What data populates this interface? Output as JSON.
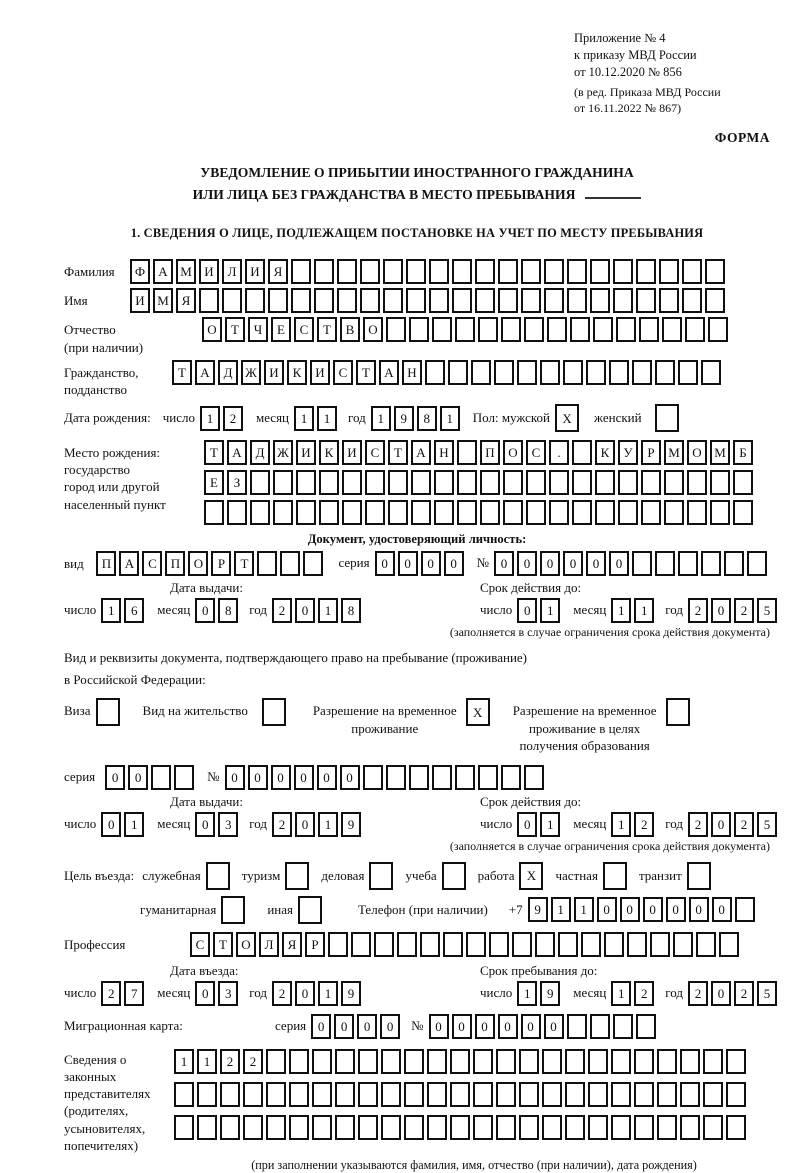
{
  "header": {
    "appendix_line1": "Приложение № 4",
    "appendix_line2": "к приказу МВД России",
    "appendix_line3": "от 10.12.2020 № 856",
    "amendment_line1": "(в ред. Приказа МВД России",
    "amendment_line2": "от 16.11.2022 № 867)",
    "forma": "ФОРМА"
  },
  "title": {
    "line1": "УВЕДОМЛЕНИЕ О ПРИБЫТИИ ИНОСТРАННОГО ГРАЖДАНИНА",
    "line2": "ИЛИ ЛИЦА БЕЗ ГРАЖДАНСТВА В МЕСТО ПРЕБЫВАНИЯ"
  },
  "section1": {
    "heading": "1. СВЕДЕНИЯ О ЛИЦЕ, ПОДЛЕЖАЩЕМ ПОСТАНОВКЕ НА УЧЕТ ПО МЕСТУ ПРЕБЫВАНИЯ"
  },
  "labels": {
    "day": "число",
    "month": "месяц",
    "year": "год",
    "series": "серия",
    "number": "№",
    "issue_date": "Дата выдачи:",
    "valid_until": "Срок действия до:",
    "entry_date": "Дата въезда:",
    "stay_until": "Срок пребывания до:",
    "restriction_note": "(заполняется в случае ограничения срока действия документа)"
  },
  "person": {
    "surname": {
      "label": "Фамилия",
      "value": "ФАМИЛИЯ"
    },
    "given_name": {
      "label": "Имя",
      "value": "ИМЯ"
    },
    "patronymic": {
      "label_line1": "Отчество",
      "label_line2": "(при наличии)",
      "value": "ОТЧЕСТВО"
    },
    "citizenship": {
      "label_line1": "Гражданство,",
      "label_line2": "подданство",
      "value": "ТАДЖИКИСТАН"
    },
    "birth_date": {
      "label": "Дата рождения:",
      "day": "12",
      "month": "11",
      "year": "1981"
    },
    "sex": {
      "label": "Пол: мужской",
      "male_mark": "X",
      "female_label": "женский",
      "female_mark": ""
    },
    "birth_place": {
      "label_line1": "Место рождения:",
      "label_line2": "государство",
      "label_line3": "город или другой",
      "label_line4": "населенный пункт",
      "row1": "ТАДЖИКИСТАН ПОС. КУРМОМБ",
      "row2": "ЕЗ",
      "row3": ""
    }
  },
  "identity_doc": {
    "heading": "Документ, удостоверяющий личность:",
    "kind_label": "вид",
    "kind": "ПАСПОРТ",
    "series": "0000",
    "number": "000000",
    "issue": {
      "day": "16",
      "month": "08",
      "year": "2018"
    },
    "valid": {
      "day": "01",
      "month": "11",
      "year": "2025"
    }
  },
  "residence_doc": {
    "intro_line1": "Вид и реквизиты документа, подтверждающего право на пребывание (проживание)",
    "intro_line2": "в Российской Федерации:",
    "options": [
      {
        "line1": "Виза",
        "mark": ""
      },
      {
        "line1": "Вид на жительство",
        "mark": ""
      },
      {
        "line1": "Разрешение на временное",
        "line2": "проживание",
        "mark": "X"
      },
      {
        "line1": "Разрешение на временное",
        "line2": "проживание в целях",
        "line3": "получения образования",
        "mark": ""
      }
    ],
    "series": "00",
    "number": "000000",
    "issue": {
      "day": "01",
      "month": "03",
      "year": "2019"
    },
    "valid": {
      "day": "01",
      "month": "12",
      "year": "2025"
    }
  },
  "visit": {
    "purpose_label": "Цель въезда:",
    "purposes": [
      {
        "label": "служебная",
        "mark": ""
      },
      {
        "label": "туризм",
        "mark": ""
      },
      {
        "label": "деловая",
        "mark": ""
      },
      {
        "label": "учеба",
        "mark": ""
      },
      {
        "label": "работа",
        "mark": "X"
      },
      {
        "label": "частная",
        "mark": ""
      },
      {
        "label": "транзит",
        "mark": ""
      },
      {
        "label": "гуманитарная",
        "mark": ""
      },
      {
        "label": "иная",
        "mark": ""
      }
    ],
    "phone": {
      "label": "Телефон (при наличии)",
      "prefix": "+7",
      "digits": "911000000"
    },
    "profession": {
      "label": "Профессия",
      "value": "СТОЛЯР"
    },
    "entry": {
      "day": "27",
      "month": "03",
      "year": "2019"
    },
    "stay": {
      "day": "19",
      "month": "12",
      "year": "2025"
    }
  },
  "migration_card": {
    "label": "Миграционная карта:",
    "series": "0000",
    "number": "000000"
  },
  "representatives": {
    "label_line1": "Сведения о",
    "label_line2": "законных",
    "label_line3": "представителях",
    "label_line4": "(родителях,",
    "label_line5": "усыновителях,",
    "label_line6": "попечителях)",
    "row1": "1122",
    "row2": "",
    "row3": "",
    "note": "(при заполнении указываются фамилия, имя, отчество (при наличии), дата рождения)"
  }
}
